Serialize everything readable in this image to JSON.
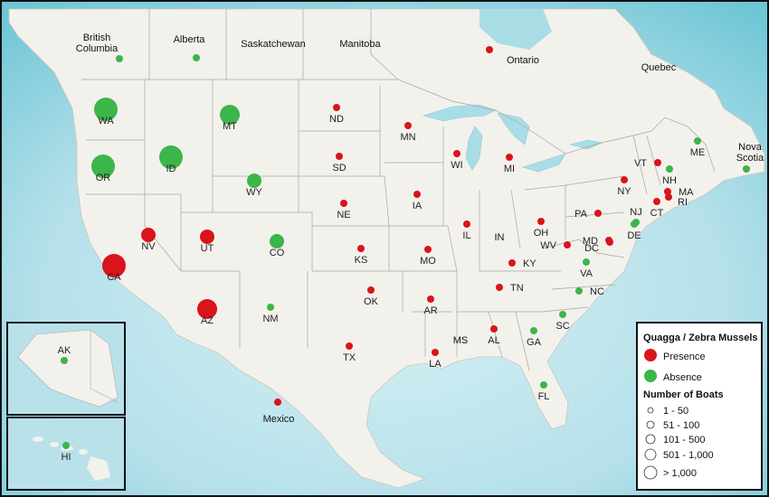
{
  "title": "",
  "colors": {
    "presence": "#d9141c",
    "absence": "#3cb54a",
    "ocean": "#b8e1ea",
    "ocean_deep": "#7fcbd9",
    "land": "#f3f1ec",
    "border": "#9e9e9e",
    "lake": "#a9dde6"
  },
  "regions": [
    {
      "label": "British\nColumbia"
    },
    {
      "label": "Alberta"
    },
    {
      "label": "Saskatchewan"
    },
    {
      "label": "Manitoba"
    },
    {
      "label": "Ontario"
    },
    {
      "label": "Quebec"
    },
    {
      "label": "Nova\nScotia"
    },
    {
      "label": "Mexico"
    },
    {
      "label": "IN"
    },
    {
      "label": "MS"
    }
  ],
  "markers": [
    {
      "label": "WA",
      "status": "absence",
      "boats_class": "501 - 1,000"
    },
    {
      "label": "OR",
      "status": "absence",
      "boats_class": "501 - 1,000"
    },
    {
      "label": "ID",
      "status": "absence",
      "boats_class": "501 - 1,000"
    },
    {
      "label": "MT",
      "status": "absence",
      "boats_class": "101 - 500"
    },
    {
      "label": "WY",
      "status": "absence",
      "boats_class": "51 - 100"
    },
    {
      "label": "CO",
      "status": "absence",
      "boats_class": "51 - 100"
    },
    {
      "label": "NM",
      "status": "absence",
      "boats_class": "1 - 50"
    },
    {
      "label": "CA",
      "status": "presence",
      "boats_class": "> 1,000"
    },
    {
      "label": "NV",
      "status": "presence",
      "boats_class": "51 - 100"
    },
    {
      "label": "UT",
      "status": "presence",
      "boats_class": "51 - 100"
    },
    {
      "label": "AZ",
      "status": "presence",
      "boats_class": "101 - 500"
    },
    {
      "label": "ND",
      "status": "presence",
      "boats_class": "1 - 50"
    },
    {
      "label": "SD",
      "status": "presence",
      "boats_class": "1 - 50"
    },
    {
      "label": "NE",
      "status": "presence",
      "boats_class": "1 - 50"
    },
    {
      "label": "KS",
      "status": "presence",
      "boats_class": "1 - 50"
    },
    {
      "label": "OK",
      "status": "presence",
      "boats_class": "1 - 50"
    },
    {
      "label": "TX",
      "status": "presence",
      "boats_class": "1 - 50"
    },
    {
      "label": "MN",
      "status": "presence",
      "boats_class": "1 - 50"
    },
    {
      "label": "IA",
      "status": "presence",
      "boats_class": "1 - 50"
    },
    {
      "label": "MO",
      "status": "presence",
      "boats_class": "1 - 50"
    },
    {
      "label": "AR",
      "status": "presence",
      "boats_class": "1 - 50"
    },
    {
      "label": "LA",
      "status": "presence",
      "boats_class": "1 - 50"
    },
    {
      "label": "WI",
      "status": "presence",
      "boats_class": "1 - 50"
    },
    {
      "label": "IL",
      "status": "presence",
      "boats_class": "1 - 50"
    },
    {
      "label": "MI",
      "status": "presence",
      "boats_class": "1 - 50"
    },
    {
      "label": "OH",
      "status": "presence",
      "boats_class": "1 - 50"
    },
    {
      "label": "KY",
      "status": "presence",
      "boats_class": "1 - 50"
    },
    {
      "label": "TN",
      "status": "presence",
      "boats_class": "1 - 50"
    },
    {
      "label": "AL",
      "status": "presence",
      "boats_class": "1 - 50"
    },
    {
      "label": "WV",
      "status": "presence",
      "boats_class": "1 - 50"
    },
    {
      "label": "PA",
      "status": "presence",
      "boats_class": "1 - 50"
    },
    {
      "label": "NY",
      "status": "presence",
      "boats_class": "1 - 50"
    },
    {
      "label": "VT",
      "status": "presence",
      "boats_class": "1 - 50"
    },
    {
      "label": "MA",
      "status": "presence",
      "boats_class": "1 - 50"
    },
    {
      "label": "RI",
      "status": "presence",
      "boats_class": "1 - 50"
    },
    {
      "label": "CT",
      "status": "presence",
      "boats_class": "1 - 50"
    },
    {
      "label": "MD",
      "status": "presence",
      "boats_class": "1 - 50"
    },
    {
      "label": "DC",
      "status": "presence",
      "boats_class": "1 - 50"
    },
    {
      "label": "NJ",
      "status": "absence",
      "boats_class": "1 - 50"
    },
    {
      "label": "DE",
      "status": "absence",
      "boats_class": "1 - 50"
    },
    {
      "label": "VA",
      "status": "absence",
      "boats_class": "1 - 50"
    },
    {
      "label": "NC",
      "status": "absence",
      "boats_class": "1 - 50"
    },
    {
      "label": "SC",
      "status": "absence",
      "boats_class": "1 - 50"
    },
    {
      "label": "GA",
      "status": "absence",
      "boats_class": "1 - 50"
    },
    {
      "label": "FL",
      "status": "absence",
      "boats_class": "1 - 50"
    },
    {
      "label": "NH",
      "status": "absence",
      "boats_class": "1 - 50"
    },
    {
      "label": "ME",
      "status": "absence",
      "boats_class": "1 - 50"
    },
    {
      "label": "Mexico",
      "status": "presence",
      "boats_class": "1 - 50"
    },
    {
      "label": "British Columbia",
      "status": "absence",
      "boats_class": "1 - 50"
    },
    {
      "label": "Alberta",
      "status": "absence",
      "boats_class": "1 - 50"
    },
    {
      "label": "Ontario",
      "status": "presence",
      "boats_class": "1 - 50"
    },
    {
      "label": "Nova Scotia",
      "status": "absence",
      "boats_class": "1 - 50"
    },
    {
      "label": "AK",
      "status": "absence",
      "boats_class": "1 - 50"
    },
    {
      "label": "HI",
      "status": "absence",
      "boats_class": "1 - 50"
    }
  ],
  "legend": {
    "title": "Quagga / Zebra Mussels",
    "presence_label": "Presence",
    "absence_label": "Absence",
    "size_title": "Number of Boats",
    "size_classes": [
      "1 - 50",
      "51 - 100",
      "101 - 500",
      "501 - 1,000",
      "> 1,000"
    ]
  }
}
